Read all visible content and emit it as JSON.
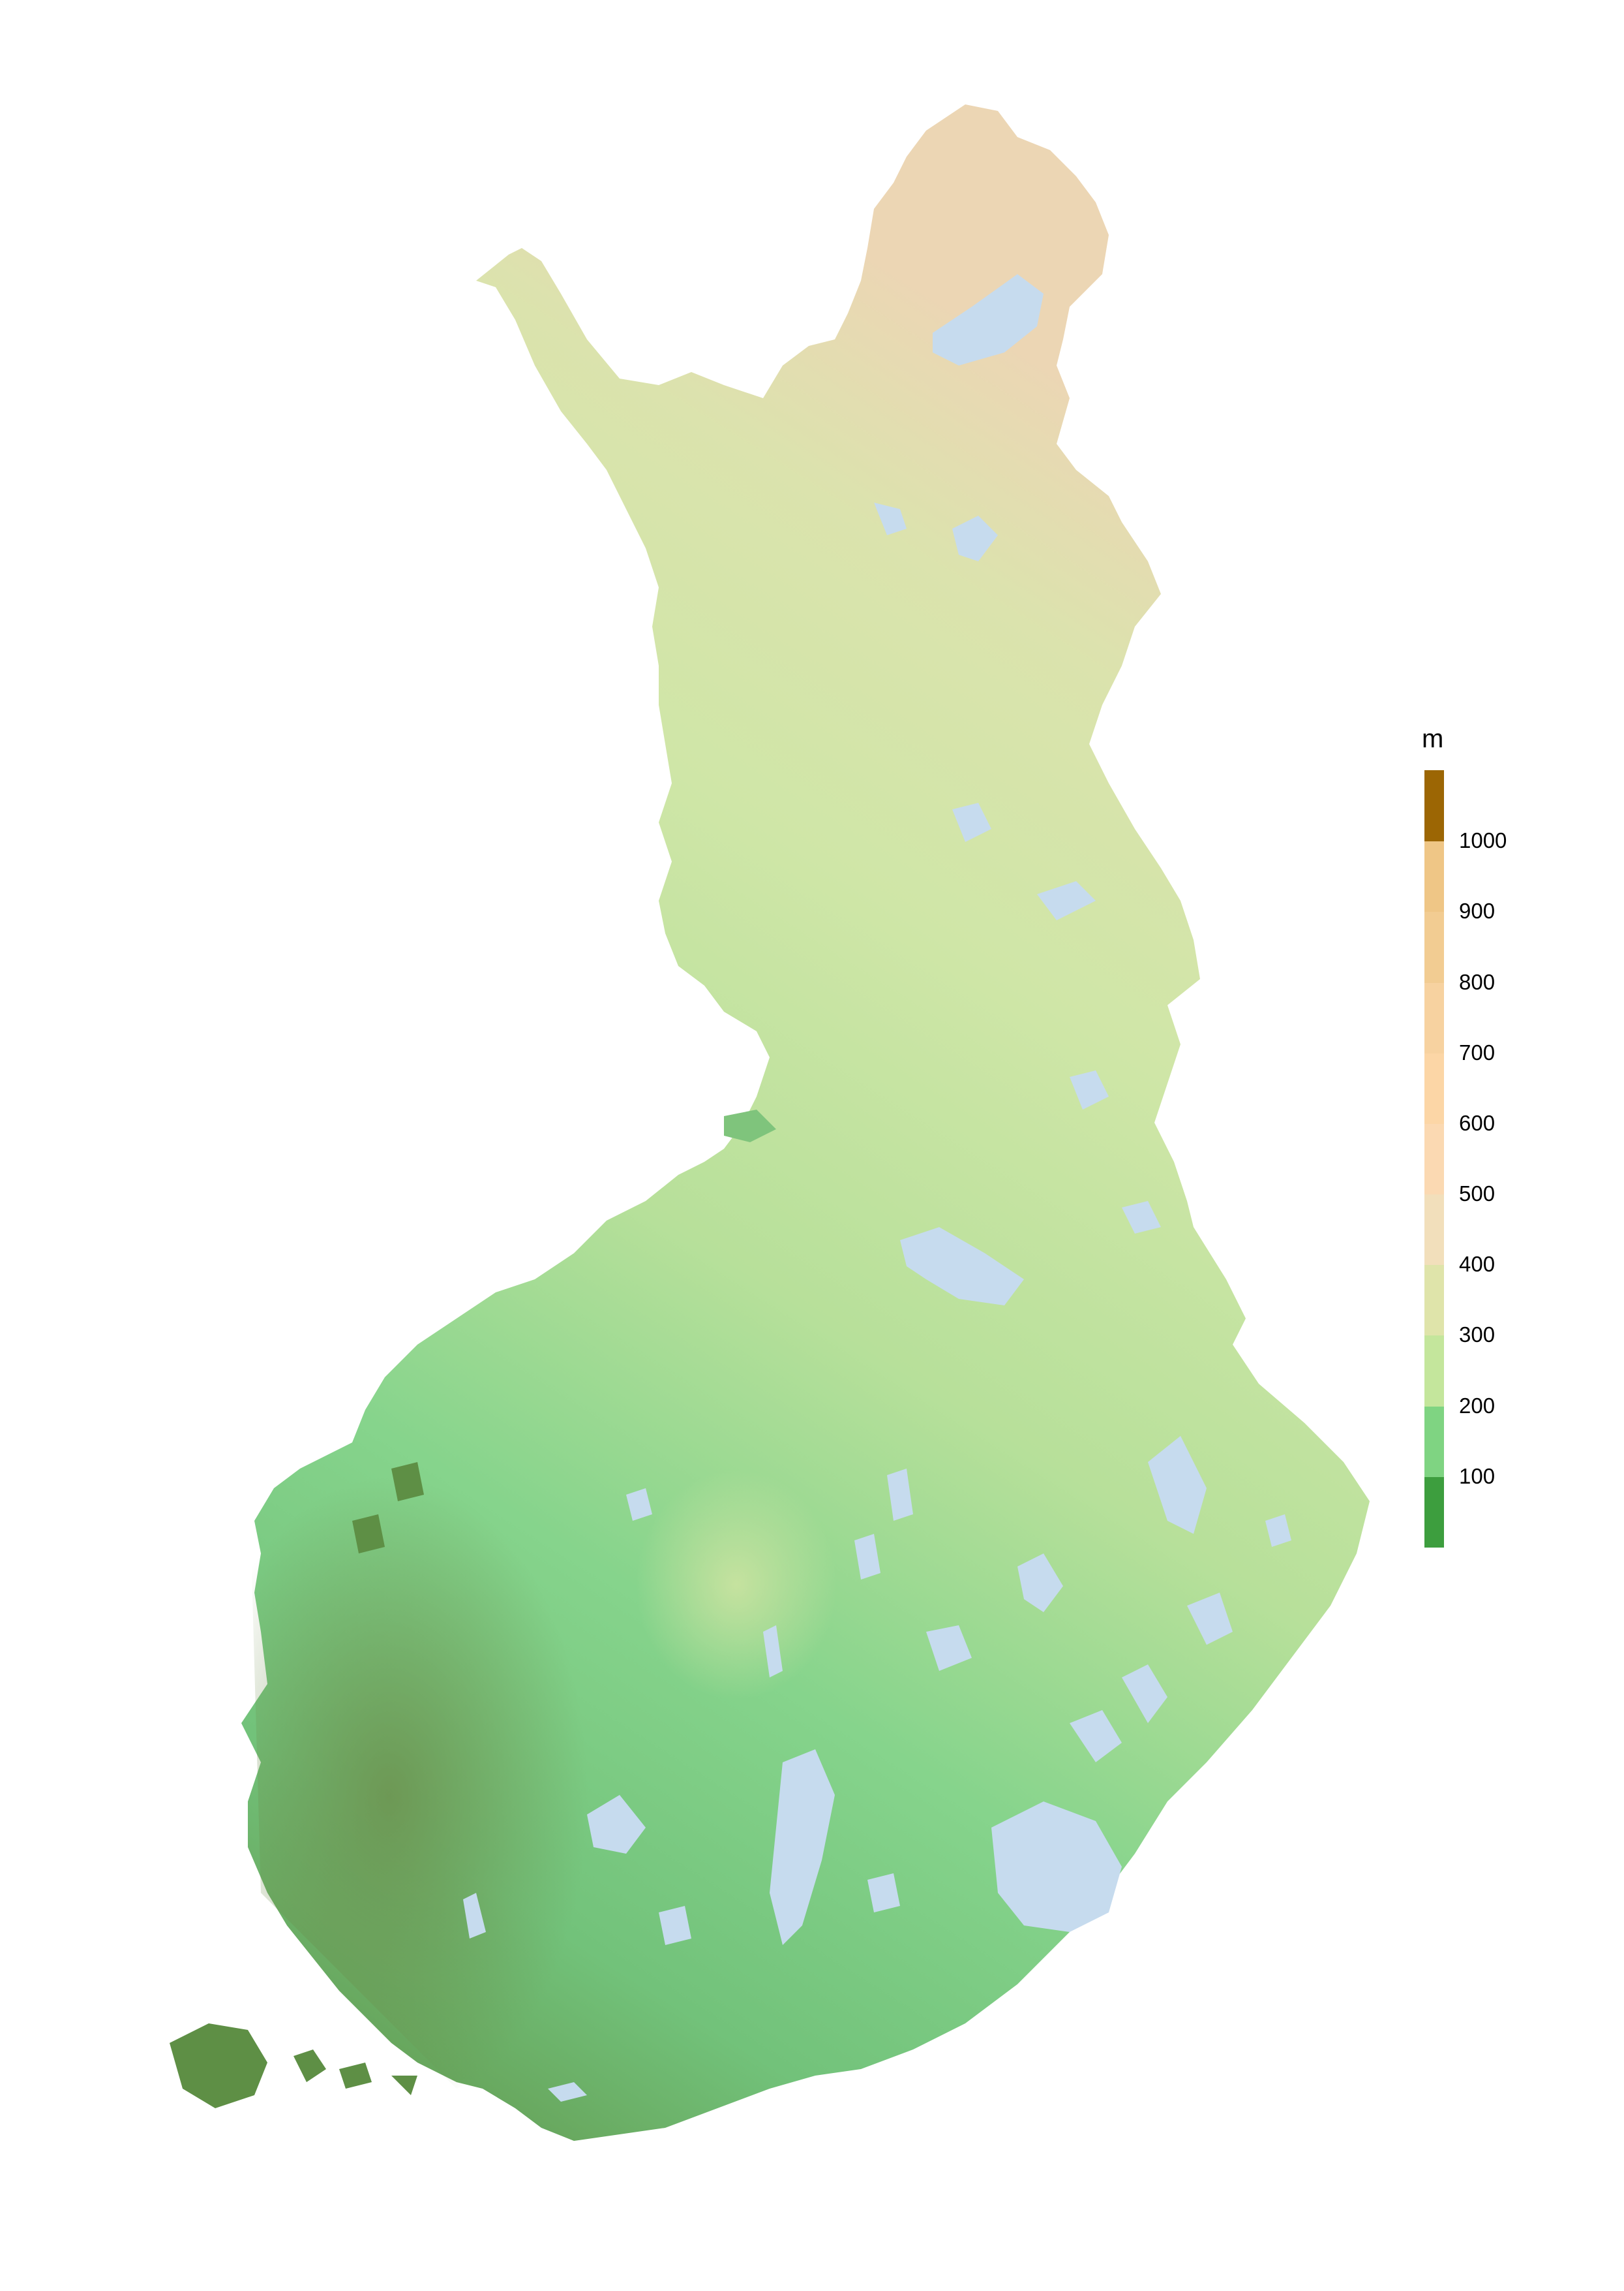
{
  "map": {
    "land_gradient": {
      "dark": "#6e8a4a",
      "mid": "#7fd482",
      "light": "#c7e4a1",
      "high": "#e8d6b2"
    },
    "lake_color": "#c6dbee"
  },
  "legend": {
    "unit": "m",
    "bins": [
      {
        "from": 0,
        "to": 100,
        "color": "#3d9e3e"
      },
      {
        "from": 100,
        "to": 200,
        "color": "#7fd482"
      },
      {
        "from": 200,
        "to": 300,
        "color": "#c4e69c"
      },
      {
        "from": 300,
        "to": 400,
        "color": "#dfe4aa"
      },
      {
        "from": 400,
        "to": 500,
        "color": "#f2dfbb"
      },
      {
        "from": 500,
        "to": 600,
        "color": "#fbd9b2"
      },
      {
        "from": 600,
        "to": 700,
        "color": "#fcd6a6"
      },
      {
        "from": 700,
        "to": 800,
        "color": "#f7d2a0"
      },
      {
        "from": 800,
        "to": 900,
        "color": "#f2cc92"
      },
      {
        "from": 900,
        "to": 1000,
        "color": "#efc686"
      },
      {
        "from": 1000,
        "to": 1100,
        "color": "#9c6604"
      }
    ],
    "ticks": [
      "100",
      "200",
      "300",
      "400",
      "500",
      "600",
      "700",
      "800",
      "900",
      "1000"
    ]
  }
}
